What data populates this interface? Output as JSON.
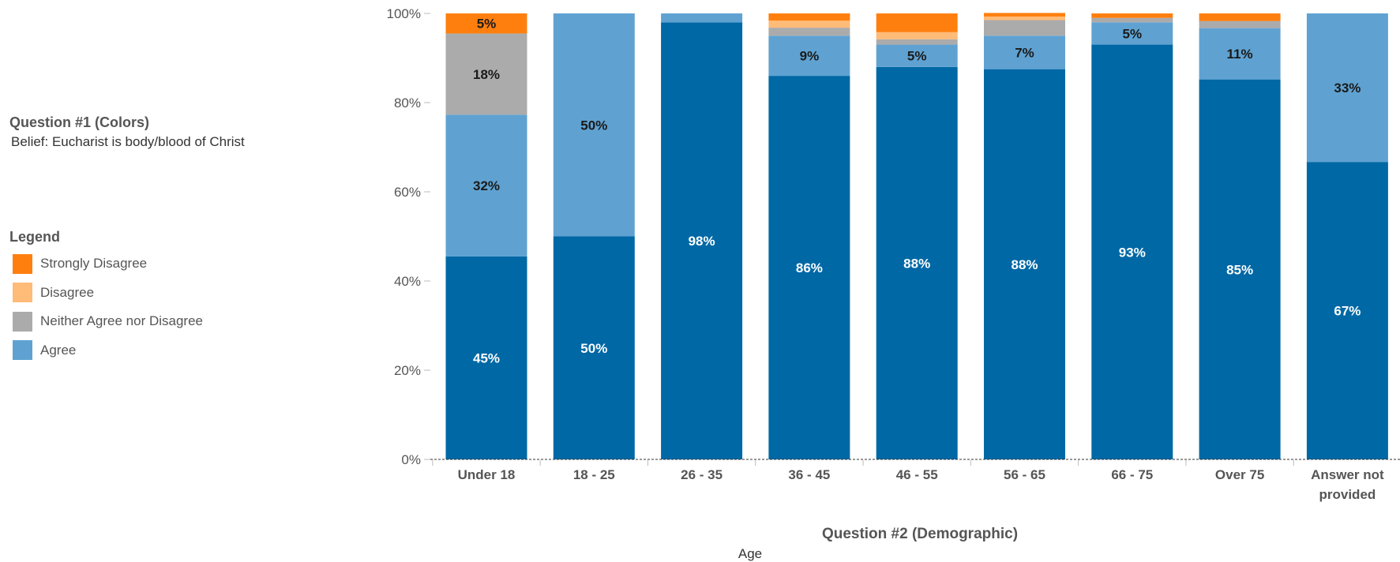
{
  "header": {
    "question_title": "Question #1 (Colors)",
    "question_subtitle": "Belief: Eucharist is body/blood of Christ"
  },
  "legend": {
    "title": "Legend",
    "items": [
      {
        "label": "Strongly Disagree",
        "color": "#FF7F0E"
      },
      {
        "label": "Disagree",
        "color": "#FFBB78"
      },
      {
        "label": "Neither Agree nor Disagree",
        "color": "#ABABAB"
      },
      {
        "label": "Agree",
        "color": "#5FA2D2"
      }
    ]
  },
  "chart_data": {
    "type": "bar",
    "stacked": true,
    "xlabel": "Question #2 (Demographic)",
    "xlabel_sub": "Age",
    "ylabel": "",
    "ylim": [
      0,
      100
    ],
    "yticks": [
      0,
      20,
      40,
      60,
      80,
      100
    ],
    "categories": [
      "Under 18",
      "18 - 25",
      "26 - 35",
      "36 - 45",
      "46 - 55",
      "56 - 65",
      "66 - 75",
      "Over 75",
      "Answer not provided"
    ],
    "series": [
      {
        "key": "strongly_agree",
        "color": "#0068A5",
        "label_color": "#ffffff",
        "values": [
          45.5,
          50,
          98,
          86,
          88,
          87.5,
          93,
          85.2,
          66.7
        ],
        "labels": [
          "45%",
          "50%",
          "98%",
          "86%",
          "88%",
          "88%",
          "93%",
          "85%",
          "67%"
        ]
      },
      {
        "name": "Agree",
        "color": "#5FA2D2",
        "label_color": "#1a1a1a",
        "values": [
          31.8,
          50,
          2,
          9,
          5,
          7.5,
          5,
          11.5,
          33.3
        ],
        "labels": [
          "32%",
          "50%",
          "",
          "9%",
          "5%",
          "7%",
          "5%",
          "11%",
          "33%"
        ]
      },
      {
        "name": "Neither Agree nor Disagree",
        "color": "#ABABAB",
        "label_color": "#1a1a1a",
        "values": [
          18.2,
          0,
          0,
          1.8,
          1.2,
          3.5,
          1,
          1.6,
          0
        ],
        "labels": [
          "18%",
          "",
          "",
          "",
          "",
          "",
          "",
          "",
          ""
        ]
      },
      {
        "name": "Disagree",
        "color": "#FFBB78",
        "label_color": "#1a1a1a",
        "values": [
          0,
          0,
          0,
          1.6,
          1.6,
          0.8,
          0,
          0,
          0
        ],
        "labels": [
          "",
          "",
          "",
          "",
          "",
          "",
          "",
          "",
          ""
        ]
      },
      {
        "name": "Strongly Disagree",
        "color": "#FF7F0E",
        "label_color": "#1a1a1a",
        "values": [
          4.5,
          0,
          0,
          1.6,
          4.2,
          0.8,
          1,
          1.7,
          0
        ],
        "labels": [
          "5%",
          "",
          "",
          "",
          "",
          "",
          "",
          "",
          ""
        ]
      }
    ],
    "category_label_lines": [
      [
        "Under 18"
      ],
      [
        "18 - 25"
      ],
      [
        "26 - 35"
      ],
      [
        "36 - 45"
      ],
      [
        "46 - 55"
      ],
      [
        "56 - 65"
      ],
      [
        "66 - 75"
      ],
      [
        "Over 75"
      ],
      [
        "Answer not",
        "provided"
      ]
    ],
    "tick_labels": [
      "0%",
      "20%",
      "40%",
      "60%",
      "80%",
      "100%"
    ]
  }
}
